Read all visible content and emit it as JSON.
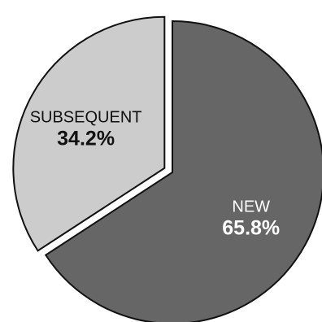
{
  "chart_data": {
    "type": "pie",
    "slices": [
      {
        "label": "NEW",
        "pct_label": "65.8%",
        "value": 65.8,
        "color": "#666666",
        "text_color": "#ffffff",
        "exploded": false
      },
      {
        "label": "SUBSEQUENT",
        "pct_label": "34.2%",
        "value": 34.2,
        "color": "#cccccc",
        "text_color": "#111111",
        "exploded": true
      }
    ],
    "start_angle_deg": 0,
    "direction": "clockwise",
    "legend": "none",
    "edge_color": "#111111"
  }
}
